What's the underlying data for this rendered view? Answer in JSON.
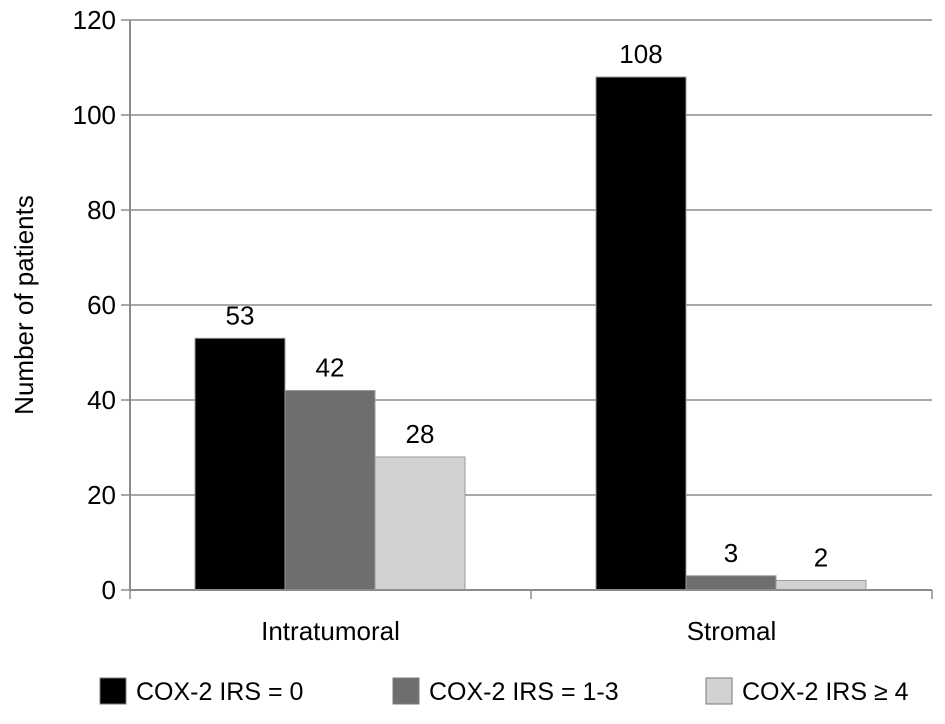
{
  "chart_data": {
    "type": "bar",
    "title": "",
    "xlabel": "",
    "ylabel": "Number of patients",
    "ylim": [
      0,
      120
    ],
    "yticks": [
      0,
      20,
      40,
      60,
      80,
      100,
      120
    ],
    "grid": true,
    "legend_position": "bottom",
    "categories": [
      "Intratumoral",
      "Stromal"
    ],
    "series": [
      {
        "name": "COX-2 IRS = 0",
        "values": [
          53,
          108
        ],
        "color": "#000000"
      },
      {
        "name": "COX-2 IRS = 1-3",
        "values": [
          42,
          3
        ],
        "color": "#6e6e6e"
      },
      {
        "name": "COX-2 IRS ≥ 4",
        "values": [
          28,
          2
        ],
        "color": "#d2d2d2"
      }
    ]
  }
}
